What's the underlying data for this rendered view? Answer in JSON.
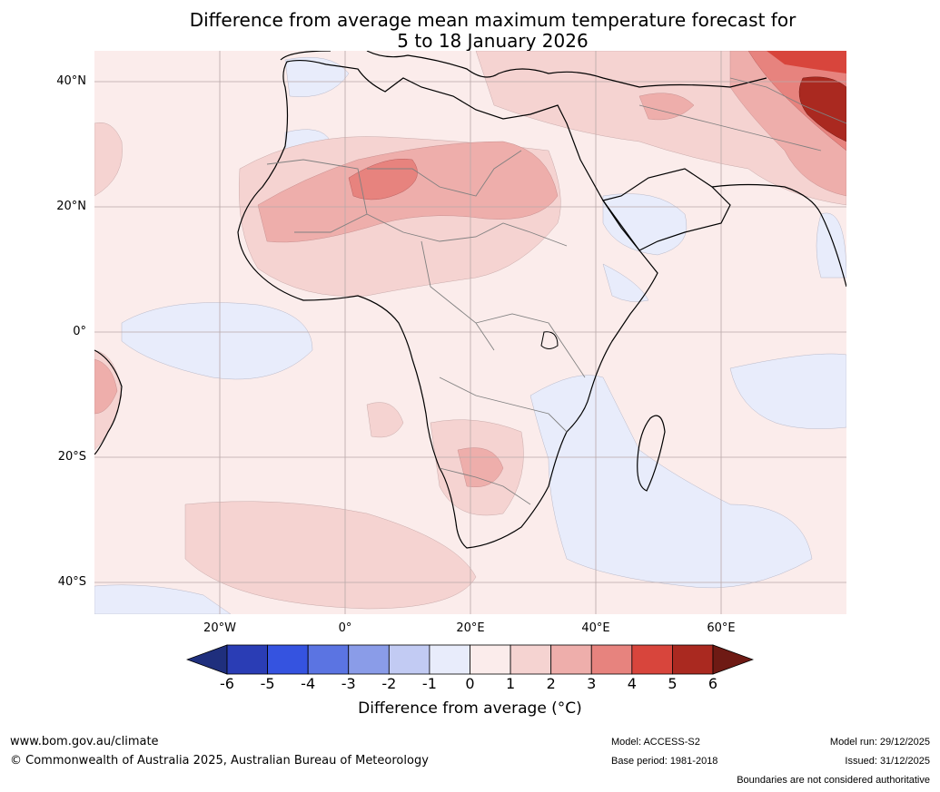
{
  "title_line1": "Difference from average mean maximum temperature forecast for",
  "title_line2": "5 to 18 January 2026",
  "map": {
    "latitude_labels": [
      "40°N",
      "20°N",
      "0°",
      "20°S",
      "40°S"
    ],
    "longitude_labels": [
      "20°W",
      "0°",
      "20°E",
      "40°E",
      "60°E"
    ],
    "lon_range": [
      -40,
      80
    ],
    "lat_range": [
      -45,
      45
    ]
  },
  "colorbar": {
    "ticks": [
      "-6",
      "-5",
      "-4",
      "-3",
      "-2",
      "-1",
      "0",
      "1",
      "2",
      "3",
      "4",
      "5",
      "6"
    ],
    "colors": [
      "#1f2f7d",
      "#2a3db5",
      "#3553e0",
      "#5b74e2",
      "#8a9ce8",
      "#c2cbf3",
      "#e8ecfb",
      "#fbeceb",
      "#f5d3d1",
      "#eeaeab",
      "#e7837e",
      "#d8453c",
      "#aa2920",
      "#6e1a14"
    ],
    "label": "Difference from average (°C)"
  },
  "footer": {
    "website": "www.bom.gov.au/climate",
    "copyright": "© Commonwealth of Australia 2025, Australian Bureau of Meteorology",
    "model": "Model: ACCESS-S2",
    "base_period": "Base period: 1981-2018",
    "model_run": "Model run: 29/12/2025",
    "issued": "Issued: 31/12/2025",
    "disclaimer": "Boundaries are not considered authoritative"
  }
}
